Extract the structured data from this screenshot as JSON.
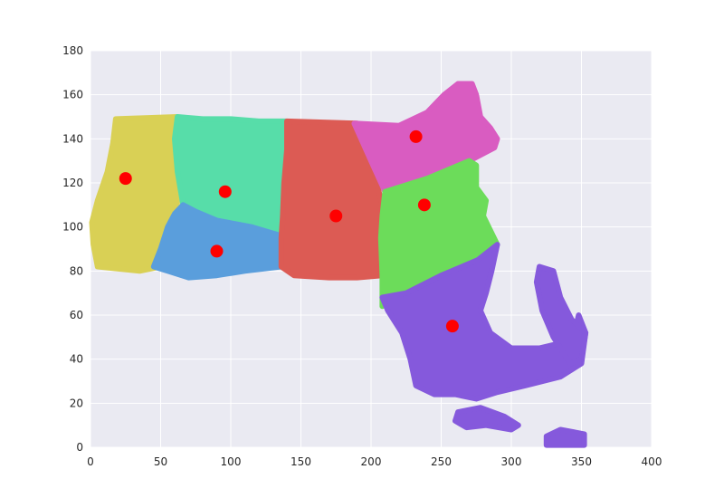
{
  "chart_data": {
    "type": "scatter",
    "title": "",
    "xlabel": "",
    "ylabel": "",
    "xlim": [
      0,
      400
    ],
    "ylim": [
      0,
      180
    ],
    "x_ticks": [
      0,
      50,
      100,
      150,
      200,
      250,
      300,
      350,
      400
    ],
    "y_ticks": [
      0,
      20,
      40,
      60,
      80,
      100,
      120,
      140,
      160,
      180
    ],
    "grid": true,
    "legend": "none",
    "background_color": "#eaeaf2",
    "grid_color": "#ffffff",
    "clusters": [
      {
        "color": "#d9d055",
        "centroid": [
          25,
          122
        ],
        "outline": [
          [
            18,
            149
          ],
          [
            62,
            150
          ],
          [
            60,
            140
          ],
          [
            63,
            125
          ],
          [
            62,
            112
          ],
          [
            60,
            100
          ],
          [
            56,
            90
          ],
          [
            50,
            82
          ],
          [
            35,
            80
          ],
          [
            20,
            81
          ],
          [
            5,
            82
          ],
          [
            2,
            92
          ],
          [
            1,
            102
          ],
          [
            5,
            112
          ],
          [
            12,
            125
          ],
          [
            16,
            138
          ]
        ]
      },
      {
        "color": "#57dda9",
        "centroid": [
          96,
          116
        ],
        "outline": [
          [
            62,
            150
          ],
          [
            80,
            149
          ],
          [
            100,
            149
          ],
          [
            120,
            148
          ],
          [
            140,
            148
          ],
          [
            140,
            135
          ],
          [
            138,
            120
          ],
          [
            137,
            105
          ],
          [
            136,
            95
          ],
          [
            115,
            100
          ],
          [
            90,
            103
          ],
          [
            75,
            107
          ],
          [
            66,
            110
          ],
          [
            62,
            125
          ],
          [
            60,
            140
          ]
        ]
      },
      {
        "color": "#5a9edc",
        "centroid": [
          90,
          89
        ],
        "outline": [
          [
            66,
            110
          ],
          [
            75,
            107
          ],
          [
            90,
            103
          ],
          [
            115,
            100
          ],
          [
            136,
            96
          ],
          [
            136,
            82
          ],
          [
            110,
            80
          ],
          [
            90,
            78
          ],
          [
            70,
            77
          ],
          [
            55,
            80
          ],
          [
            45,
            82
          ],
          [
            50,
            90
          ],
          [
            55,
            100
          ],
          [
            60,
            106
          ]
        ]
      },
      {
        "color": "#dc5b54",
        "centroid": [
          175,
          105
        ],
        "outline": [
          [
            140,
            148
          ],
          [
            190,
            147
          ],
          [
            200,
            130
          ],
          [
            208,
            110
          ],
          [
            207,
            95
          ],
          [
            208,
            78
          ],
          [
            190,
            77
          ],
          [
            170,
            77
          ],
          [
            145,
            78
          ],
          [
            136,
            82
          ],
          [
            136,
            95
          ],
          [
            137,
            105
          ],
          [
            138,
            120
          ],
          [
            140,
            135
          ]
        ]
      },
      {
        "color": "#d95cc1",
        "centroid": [
          232,
          141
        ],
        "outline": [
          [
            188,
            147
          ],
          [
            220,
            146
          ],
          [
            240,
            152
          ],
          [
            252,
            160
          ],
          [
            262,
            165
          ],
          [
            272,
            165
          ],
          [
            275,
            160
          ],
          [
            278,
            150
          ],
          [
            285,
            145
          ],
          [
            290,
            140
          ],
          [
            288,
            136
          ],
          [
            270,
            130
          ],
          [
            240,
            122
          ],
          [
            210,
            116
          ],
          [
            200,
            130
          ]
        ]
      },
      {
        "color": "#6cdc5a",
        "centroid": [
          238,
          110
        ],
        "outline": [
          [
            210,
            116
          ],
          [
            240,
            122
          ],
          [
            270,
            130
          ],
          [
            275,
            128
          ],
          [
            275,
            118
          ],
          [
            282,
            112
          ],
          [
            280,
            105
          ],
          [
            290,
            92
          ],
          [
            276,
            85
          ],
          [
            250,
            78
          ],
          [
            225,
            70
          ],
          [
            208,
            64
          ],
          [
            208,
            78
          ],
          [
            207,
            95
          ],
          [
            208,
            105
          ]
        ]
      },
      {
        "color": "#8559dc",
        "centroid": [
          258,
          55
        ],
        "outline": [
          [
            208,
            68
          ],
          [
            225,
            70
          ],
          [
            250,
            78
          ],
          [
            276,
            85
          ],
          [
            290,
            92
          ],
          [
            286,
            80
          ],
          [
            282,
            70
          ],
          [
            278,
            62
          ],
          [
            285,
            52
          ],
          [
            300,
            45
          ],
          [
            320,
            45
          ],
          [
            340,
            48
          ],
          [
            345,
            52
          ],
          [
            348,
            60
          ],
          [
            353,
            52
          ],
          [
            350,
            38
          ],
          [
            335,
            32
          ],
          [
            310,
            28
          ],
          [
            290,
            25
          ],
          [
            275,
            22
          ],
          [
            260,
            24
          ],
          [
            245,
            24
          ],
          [
            232,
            28
          ],
          [
            228,
            40
          ],
          [
            222,
            52
          ],
          [
            212,
            62
          ]
        ]
      },
      {
        "color": "#8559dc",
        "centroid": null,
        "outline": [
          [
            320,
            82
          ],
          [
            330,
            80
          ],
          [
            335,
            68
          ],
          [
            343,
            58
          ],
          [
            353,
            52
          ],
          [
            350,
            40
          ],
          [
            342,
            38
          ],
          [
            330,
            50
          ],
          [
            322,
            62
          ],
          [
            318,
            75
          ]
        ]
      },
      {
        "color": "#8559dc",
        "centroid": null,
        "outline": [
          [
            262,
            16
          ],
          [
            278,
            18
          ],
          [
            295,
            14
          ],
          [
            305,
            10
          ],
          [
            300,
            8
          ],
          [
            282,
            10
          ],
          [
            268,
            9
          ],
          [
            260,
            12
          ]
        ]
      },
      {
        "color": "#8559dc",
        "centroid": null,
        "outline": [
          [
            325,
            5
          ],
          [
            335,
            8
          ],
          [
            352,
            6
          ],
          [
            352,
            1
          ],
          [
            325,
            1
          ]
        ]
      }
    ],
    "centroid_color": "#ff0000"
  }
}
